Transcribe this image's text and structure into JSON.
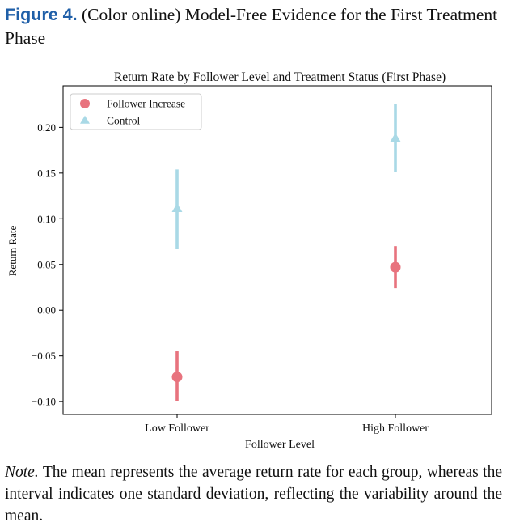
{
  "figure": {
    "label": "Figure 4.",
    "title": "(Color online) Model-Free Evidence for the First Treatment Phase"
  },
  "note": {
    "label": "Note.",
    "text": "The mean represents the average return rate for each group, whereas the interval indicates one standard deviation, reflecting the variability around the mean."
  },
  "colors": {
    "follower_increase": "#e8737e",
    "control": "#a9d9e6",
    "axis": "#000000"
  },
  "chart_data": {
    "type": "scatter",
    "title": "Return Rate by Follower Level and Treatment Status (First Phase)",
    "xlabel": "Follower Level",
    "ylabel": "Return Rate",
    "categories": [
      "Low Follower",
      "High Follower"
    ],
    "ylim": [
      -0.11,
      0.235
    ],
    "yticks": [
      -0.1,
      -0.05,
      0.0,
      0.05,
      0.1,
      0.15,
      0.2
    ],
    "ytick_labels": [
      "−0.10",
      "−0.05",
      "0.00",
      "0.05",
      "0.10",
      "0.15",
      "0.20"
    ],
    "grid": false,
    "legend_position": "top-left",
    "series": [
      {
        "name": "Follower Increase",
        "marker": "circle",
        "color": "#e8737e",
        "means": [
          -0.073,
          0.047
        ],
        "lower": [
          -0.099,
          0.024
        ],
        "upper": [
          -0.045,
          0.07
        ]
      },
      {
        "name": "Control",
        "marker": "triangle",
        "color": "#a9d9e6",
        "means": [
          0.111,
          0.188
        ],
        "lower": [
          0.067,
          0.151
        ],
        "upper": [
          0.154,
          0.226
        ]
      }
    ]
  }
}
